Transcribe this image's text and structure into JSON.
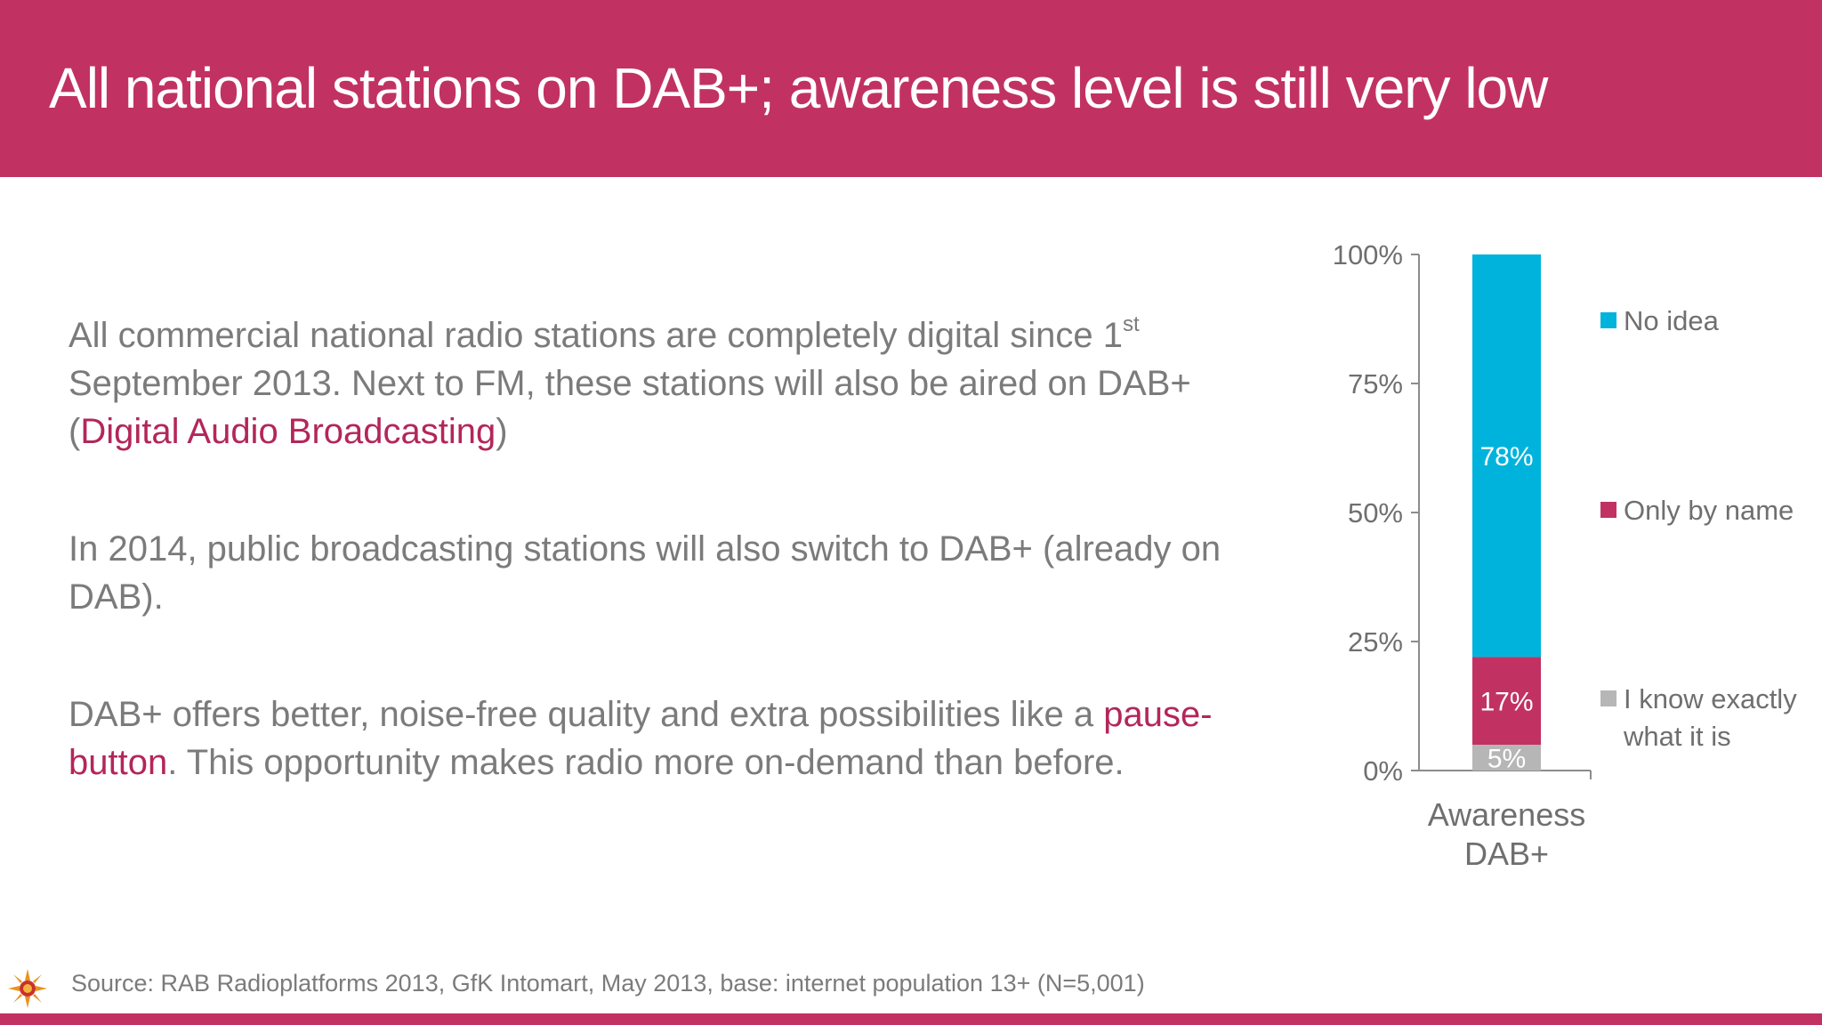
{
  "slide": {
    "title": "All national stations on DAB+; awareness level is still very low",
    "paragraphs": {
      "p1_a": "All commercial national radio stations are completely digital since 1",
      "p1_sup": "st",
      "p1_b": " September 2013. Next to FM, these stations will also be aired on DAB+ (",
      "p1_hl": "Digital Audio Broadcasting",
      "p1_c": ")",
      "p2": "In 2014, public broadcasting stations will also switch to DAB+ (already on DAB).",
      "p3_a": "DAB+ offers better, noise-free quality and extra possibilities like a ",
      "p3_hl": "pause-button",
      "p3_b": ". This opportunity makes radio more on-demand than before."
    },
    "source": "Source: RAB Radioplatforms 2013, GfK Intomart, May 2013, base: internet population 13+ (N=5,001)",
    "colors": {
      "brand": "#c13262",
      "highlight": "#b3265a",
      "body_text": "#7b7b7b"
    },
    "logo_icon": "sun-logo-icon"
  },
  "chart_data": {
    "type": "bar",
    "stacked": true,
    "categories": [
      "Awareness DAB+"
    ],
    "category_lines": [
      "Awareness",
      "DAB+"
    ],
    "series": [
      {
        "name": "I know exactly what it is",
        "name_lines": [
          "I know exactly",
          "what it is"
        ],
        "values": [
          5
        ],
        "label": "5%",
        "color": "#b6b6b6"
      },
      {
        "name": "Only by name",
        "name_lines": [
          "Only by name"
        ],
        "values": [
          17
        ],
        "label": "17%",
        "color": "#c13262"
      },
      {
        "name": "No idea",
        "name_lines": [
          "No idea"
        ],
        "values": [
          78
        ],
        "label": "78%",
        "color": "#00b3dc"
      }
    ],
    "yticks": [
      0,
      25,
      50,
      75,
      100
    ],
    "ytick_labels": [
      "0%",
      "25%",
      "50%",
      "75%",
      "100%"
    ],
    "ylim": [
      0,
      100
    ],
    "legend_position": "right",
    "grid": false
  }
}
